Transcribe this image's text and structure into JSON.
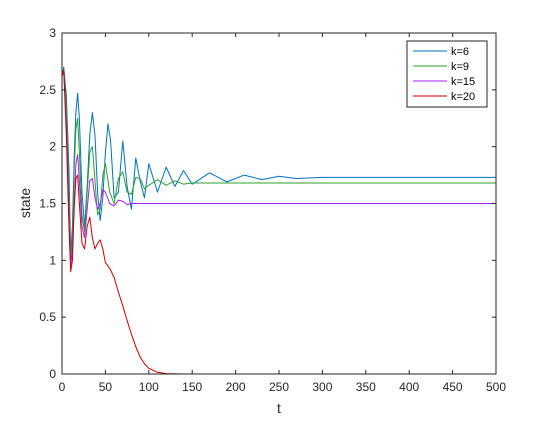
{
  "chart_data": {
    "type": "line",
    "title": "",
    "xlabel": "t",
    "ylabel": "state",
    "xlim": [
      0,
      500
    ],
    "ylim": [
      0,
      3
    ],
    "xticks": [
      "0",
      "50",
      "100",
      "150",
      "200",
      "250",
      "300",
      "350",
      "400",
      "450",
      "500"
    ],
    "yticks": [
      "0",
      "0.5",
      "1",
      "1.5",
      "2",
      "2.5",
      "3"
    ],
    "grid": false,
    "legend_position": "top-right",
    "series": [
      {
        "name": "k=6",
        "color": "#0072bd",
        "values": [
          [
            0,
            2.62
          ],
          [
            2,
            2.7
          ],
          [
            5,
            2.45
          ],
          [
            8,
            1.8
          ],
          [
            10,
            1.05
          ],
          [
            12,
            1.3
          ],
          [
            14,
            1.9
          ],
          [
            16,
            2.3
          ],
          [
            18,
            2.47
          ],
          [
            20,
            2.25
          ],
          [
            23,
            1.6
          ],
          [
            26,
            1.3
          ],
          [
            29,
            1.65
          ],
          [
            32,
            2.1
          ],
          [
            35,
            2.3
          ],
          [
            38,
            2.1
          ],
          [
            41,
            1.6
          ],
          [
            44,
            1.35
          ],
          [
            47,
            1.55
          ],
          [
            50,
            1.95
          ],
          [
            53,
            2.2
          ],
          [
            56,
            2.05
          ],
          [
            60,
            1.55
          ],
          [
            65,
            1.6
          ],
          [
            70,
            2.05
          ],
          [
            75,
            1.65
          ],
          [
            80,
            1.45
          ],
          [
            85,
            1.9
          ],
          [
            90,
            1.7
          ],
          [
            95,
            1.55
          ],
          [
            100,
            1.85
          ],
          [
            110,
            1.6
          ],
          [
            120,
            1.82
          ],
          [
            130,
            1.65
          ],
          [
            140,
            1.79
          ],
          [
            150,
            1.67
          ],
          [
            170,
            1.77
          ],
          [
            190,
            1.69
          ],
          [
            210,
            1.75
          ],
          [
            230,
            1.71
          ],
          [
            250,
            1.74
          ],
          [
            270,
            1.72
          ],
          [
            300,
            1.73
          ],
          [
            350,
            1.73
          ],
          [
            400,
            1.73
          ],
          [
            450,
            1.73
          ],
          [
            500,
            1.73
          ]
        ]
      },
      {
        "name": "k=9",
        "color": "#2ca02c",
        "values": [
          [
            0,
            2.62
          ],
          [
            2,
            2.68
          ],
          [
            5,
            2.35
          ],
          [
            8,
            1.55
          ],
          [
            10,
            1.0
          ],
          [
            12,
            1.2
          ],
          [
            14,
            1.8
          ],
          [
            16,
            2.15
          ],
          [
            18,
            2.25
          ],
          [
            20,
            1.95
          ],
          [
            23,
            1.4
          ],
          [
            26,
            1.25
          ],
          [
            29,
            1.6
          ],
          [
            32,
            1.95
          ],
          [
            35,
            2.0
          ],
          [
            38,
            1.7
          ],
          [
            41,
            1.4
          ],
          [
            44,
            1.45
          ],
          [
            47,
            1.75
          ],
          [
            50,
            1.85
          ],
          [
            55,
            1.6
          ],
          [
            60,
            1.5
          ],
          [
            65,
            1.72
          ],
          [
            70,
            1.78
          ],
          [
            75,
            1.6
          ],
          [
            80,
            1.58
          ],
          [
            85,
            1.73
          ],
          [
            90,
            1.72
          ],
          [
            95,
            1.63
          ],
          [
            100,
            1.66
          ],
          [
            110,
            1.71
          ],
          [
            120,
            1.66
          ],
          [
            130,
            1.7
          ],
          [
            140,
            1.67
          ],
          [
            150,
            1.68
          ],
          [
            200,
            1.68
          ],
          [
            300,
            1.68
          ],
          [
            400,
            1.68
          ],
          [
            500,
            1.68
          ]
        ]
      },
      {
        "name": "k=15",
        "color": "#a020f0",
        "values": [
          [
            0,
            2.62
          ],
          [
            2,
            2.67
          ],
          [
            5,
            2.2
          ],
          [
            8,
            1.4
          ],
          [
            10,
            0.95
          ],
          [
            12,
            1.1
          ],
          [
            14,
            1.5
          ],
          [
            16,
            1.85
          ],
          [
            18,
            1.93
          ],
          [
            20,
            1.7
          ],
          [
            23,
            1.3
          ],
          [
            26,
            1.2
          ],
          [
            29,
            1.45
          ],
          [
            32,
            1.7
          ],
          [
            35,
            1.72
          ],
          [
            38,
            1.55
          ],
          [
            41,
            1.45
          ],
          [
            44,
            1.5
          ],
          [
            47,
            1.62
          ],
          [
            50,
            1.6
          ],
          [
            55,
            1.5
          ],
          [
            60,
            1.48
          ],
          [
            65,
            1.53
          ],
          [
            70,
            1.52
          ],
          [
            75,
            1.49
          ],
          [
            80,
            1.5
          ],
          [
            90,
            1.5
          ],
          [
            100,
            1.5
          ],
          [
            200,
            1.5
          ],
          [
            300,
            1.5
          ],
          [
            400,
            1.5
          ],
          [
            500,
            1.5
          ]
        ]
      },
      {
        "name": "k=20",
        "color": "#cc0000",
        "values": [
          [
            0,
            2.62
          ],
          [
            2,
            2.67
          ],
          [
            5,
            2.1
          ],
          [
            8,
            1.3
          ],
          [
            10,
            0.9
          ],
          [
            12,
            1.0
          ],
          [
            14,
            1.45
          ],
          [
            16,
            1.72
          ],
          [
            18,
            1.75
          ],
          [
            20,
            1.5
          ],
          [
            23,
            1.15
          ],
          [
            26,
            1.1
          ],
          [
            29,
            1.3
          ],
          [
            32,
            1.38
          ],
          [
            35,
            1.2
          ],
          [
            38,
            1.1
          ],
          [
            41,
            1.15
          ],
          [
            44,
            1.18
          ],
          [
            47,
            1.1
          ],
          [
            50,
            0.98
          ],
          [
            55,
            0.93
          ],
          [
            60,
            0.85
          ],
          [
            65,
            0.72
          ],
          [
            70,
            0.6
          ],
          [
            75,
            0.47
          ],
          [
            80,
            0.35
          ],
          [
            85,
            0.24
          ],
          [
            90,
            0.15
          ],
          [
            95,
            0.09
          ],
          [
            100,
            0.05
          ],
          [
            110,
            0.015
          ],
          [
            120,
            0.003
          ],
          [
            140,
            0.0
          ],
          [
            200,
            0.0
          ],
          [
            300,
            0.0
          ],
          [
            400,
            0.0
          ],
          [
            500,
            0.0
          ]
        ]
      }
    ]
  }
}
